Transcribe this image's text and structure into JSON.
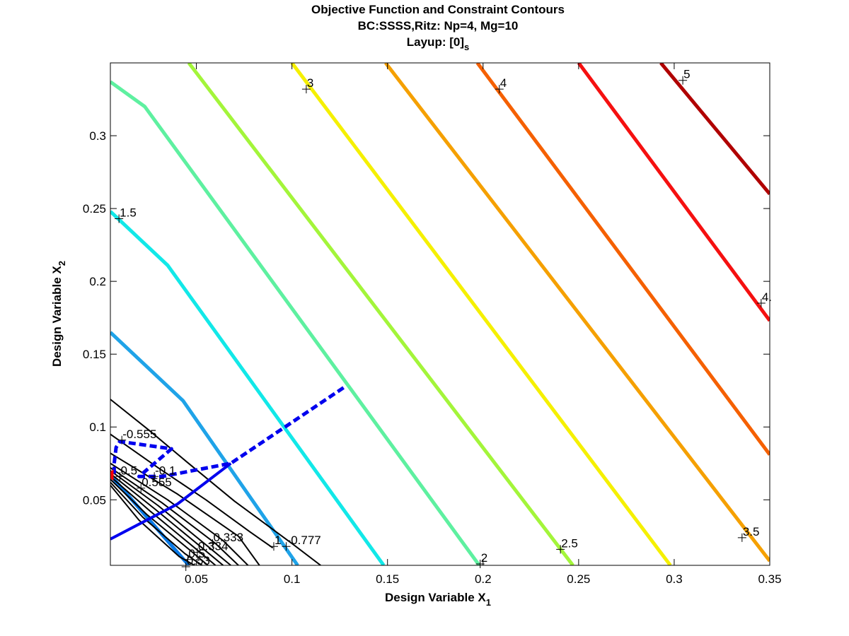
{
  "chart_data": {
    "type": "line",
    "subtype": "contour",
    "title": [
      "Objective Function and Constraint Contours",
      "BC:SSSS,Ritz: Np=4, Mg=10"
    ],
    "title_layup_prefix": "Layup: [0]",
    "title_layup_subscript": "s",
    "xlabel_main": "Design Variable X",
    "xlabel_sub": "1",
    "ylabel_main": "Design Variable X",
    "ylabel_sub": "2",
    "xlim": [
      0.005,
      0.35
    ],
    "ylim": [
      0.005,
      0.35
    ],
    "xticks": [
      0.05,
      0.1,
      0.15,
      0.2,
      0.25,
      0.3,
      0.35
    ],
    "yticks": [
      0.05,
      0.1,
      0.15,
      0.2,
      0.25,
      0.3
    ],
    "xtick_labels": [
      "0.05",
      "0.1",
      "0.15",
      "0.2",
      "0.25",
      "0.3",
      "0.35"
    ],
    "ytick_labels": [
      "0.05",
      "0.1",
      "0.15",
      "0.2",
      "0.25",
      "0.3"
    ],
    "grid": false,
    "objective_contours": [
      {
        "level": "0.5",
        "color": "#0a7ae6",
        "points": [
          [
            0.005,
            0.067
          ],
          [
            0.046,
            0.005
          ]
        ]
      },
      {
        "level": "1",
        "color": "#1fa3e8",
        "points": [
          [
            0.005,
            0.165
          ],
          [
            0.043,
            0.118
          ],
          [
            0.103,
            0.005
          ]
        ]
      },
      {
        "level": "1.5",
        "color": "#12e8e8",
        "points": [
          [
            0.005,
            0.248
          ],
          [
            0.035,
            0.211
          ],
          [
            0.148,
            0.005
          ]
        ]
      },
      {
        "level": "2",
        "color": "#5ef0a0",
        "points": [
          [
            0.005,
            0.337
          ],
          [
            0.023,
            0.32
          ],
          [
            0.198,
            0.005
          ]
        ]
      },
      {
        "level": "2.5",
        "color": "#a3f53a",
        "points": [
          [
            0.046,
            0.35
          ],
          [
            0.247,
            0.005
          ]
        ]
      },
      {
        "level": "3",
        "color": "#f5f000",
        "points": [
          [
            0.1,
            0.35
          ],
          [
            0.298,
            0.005
          ]
        ]
      },
      {
        "level": "3.5",
        "color": "#f5a000",
        "points": [
          [
            0.149,
            0.35
          ],
          [
            0.35,
            0.008
          ]
        ]
      },
      {
        "level": "4",
        "color": "#f56000",
        "points": [
          [
            0.197,
            0.35
          ],
          [
            0.35,
            0.081
          ]
        ]
      },
      {
        "level": "4.5",
        "color": "#f51010",
        "points": [
          [
            0.25,
            0.35
          ],
          [
            0.35,
            0.173
          ]
        ]
      },
      {
        "level": "5",
        "color": "#b00000",
        "points": [
          [
            0.293,
            0.35
          ],
          [
            0.35,
            0.26
          ]
        ]
      }
    ],
    "objective_labels": [
      {
        "text": "1.5",
        "x": 0.0095,
        "y": 0.243
      },
      {
        "text": "2",
        "x": 0.1985,
        "y": 0.006
      },
      {
        "text": "2.5",
        "x": 0.2405,
        "y": 0.016
      },
      {
        "text": "3",
        "x": 0.1075,
        "y": 0.332
      },
      {
        "text": "3.5",
        "x": 0.3355,
        "y": 0.024
      },
      {
        "text": "4",
        "x": 0.2085,
        "y": 0.332
      },
      {
        "text": "4.",
        "x": 0.3455,
        "y": 0.185
      },
      {
        "text": "5",
        "x": 0.3045,
        "y": 0.338
      }
    ],
    "constraint_contours": [
      {
        "points": [
          [
            0.005,
            0.119
          ],
          [
            0.025,
            0.098
          ],
          [
            0.045,
            0.076
          ],
          [
            0.07,
            0.049
          ],
          [
            0.1,
            0.02
          ],
          [
            0.115,
            0.005
          ]
        ]
      },
      {
        "points": [
          [
            0.005,
            0.095
          ],
          [
            0.03,
            0.072
          ],
          [
            0.055,
            0.05
          ],
          [
            0.078,
            0.028
          ],
          [
            0.09,
            0.017
          ]
        ]
      },
      {
        "points": [
          [
            0.005,
            0.082
          ],
          [
            0.04,
            0.054
          ],
          [
            0.072,
            0.025
          ],
          [
            0.083,
            0.005
          ]
        ]
      },
      {
        "points": [
          [
            0.005,
            0.075
          ],
          [
            0.035,
            0.05
          ],
          [
            0.064,
            0.022
          ],
          [
            0.077,
            0.005
          ]
        ]
      },
      {
        "points": [
          [
            0.005,
            0.072
          ],
          [
            0.032,
            0.048
          ],
          [
            0.06,
            0.02
          ],
          [
            0.072,
            0.005
          ]
        ]
      },
      {
        "points": [
          [
            0.005,
            0.07
          ],
          [
            0.03,
            0.046
          ],
          [
            0.056,
            0.018
          ],
          [
            0.068,
            0.005
          ]
        ]
      },
      {
        "points": [
          [
            0.005,
            0.068
          ],
          [
            0.028,
            0.044
          ],
          [
            0.053,
            0.017
          ],
          [
            0.064,
            0.005
          ]
        ]
      },
      {
        "points": [
          [
            0.005,
            0.066
          ],
          [
            0.026,
            0.042
          ],
          [
            0.05,
            0.016
          ],
          [
            0.06,
            0.005
          ]
        ]
      },
      {
        "points": [
          [
            0.005,
            0.064
          ],
          [
            0.024,
            0.04
          ],
          [
            0.047,
            0.015
          ],
          [
            0.056,
            0.005
          ]
        ]
      },
      {
        "points": [
          [
            0.005,
            0.062
          ],
          [
            0.022,
            0.038
          ],
          [
            0.044,
            0.013
          ],
          [
            0.053,
            0.005
          ]
        ]
      },
      {
        "points": [
          [
            0.005,
            0.06
          ],
          [
            0.02,
            0.036
          ],
          [
            0.041,
            0.011
          ],
          [
            0.049,
            0.005
          ]
        ]
      }
    ],
    "constraint_labels": [
      {
        "text": "-0.555",
        "x": 0.011,
        "y": 0.091
      },
      {
        "text": "-0.777",
        "x": 0.097,
        "y": 0.018
      },
      {
        "text": "1",
        "x": 0.0905,
        "y": 0.018
      },
      {
        "text": "0.333",
        "x": 0.0585,
        "y": 0.02
      },
      {
        "text": "0.334",
        "x": 0.0505,
        "y": 0.014
      },
      {
        "text": "0.555",
        "x": 0.021,
        "y": 0.058
      },
      {
        "text": "-0.1",
        "x": 0.028,
        "y": 0.066
      },
      {
        "text": "0.5",
        "x": 0.01,
        "y": 0.066
      },
      {
        "text": "0.5",
        "x": 0.0455,
        "y": 0.009
      },
      {
        "text": "0.53",
        "x": 0.0445,
        "y": 0.004
      }
    ],
    "dashed_path": {
      "color": "#0000ee",
      "points": [
        [
          0.127,
          0.127
        ],
        [
          0.068,
          0.075
        ],
        [
          0.032,
          0.066
        ],
        [
          0.02,
          0.066
        ],
        [
          0.037,
          0.085
        ],
        [
          0.01,
          0.09
        ],
        [
          0.008,
          0.086
        ],
        [
          0.007,
          0.075
        ],
        [
          0.007,
          0.068
        ]
      ]
    },
    "solid_path": {
      "color": "#0000ee",
      "points": [
        [
          0.005,
          0.023
        ],
        [
          0.04,
          0.047
        ],
        [
          0.068,
          0.075
        ]
      ]
    },
    "marker": {
      "color": "#ff0000",
      "x": 0.005,
      "y": 0.067
    }
  }
}
